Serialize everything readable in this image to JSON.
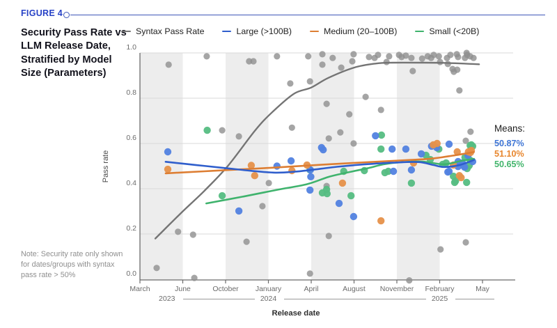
{
  "figure_label": "FIGURE 4",
  "title": "Security Pass Rate vs LLM Release Date, Stratified by Model Size (Parameters)",
  "note": "Note: Security rate only shown for dates/groups with syntax pass rate > 50%",
  "chart_data": {
    "type": "scatter",
    "title": "Security Pass Rate vs LLM Release Date, Stratified by Model Size (Parameters)",
    "xlabel": "Release date",
    "ylabel": "Pass rate",
    "ylim": [
      0.0,
      1.0
    ],
    "grid": true,
    "banded_background": true,
    "legend_position": "top",
    "y_ticks": [
      "0.0",
      "0.2",
      "0.4",
      "0.6",
      "0.8",
      "1.0"
    ],
    "x_ticks": [
      "March",
      "June",
      "October",
      "January",
      "April",
      "August",
      "November",
      "February",
      "May"
    ],
    "x_years": [
      {
        "label": "2023",
        "x": 0.63
      },
      {
        "label": "2024",
        "x": 3.0
      },
      {
        "label": "2025",
        "x": 7.0
      }
    ],
    "x_unit": "tick index (0 = March 2023 ... 8 = May 2025)",
    "annotations": {
      "label": "Means:",
      "means": [
        {
          "series": "Large (>100B)",
          "value": "50.87%",
          "color": "#3f76d6"
        },
        {
          "series": "Medium (20–100B)",
          "value": "51.10%",
          "color": "#e8862d"
        },
        {
          "series": "Small (<20B)",
          "value": "50.65%",
          "color": "#43b56c"
        }
      ]
    },
    "series": [
      {
        "name": "Syntax Pass Rate",
        "point_color": "#8e8e8e",
        "line_color": "#747474",
        "points": [
          [
            0.39,
            0.05
          ],
          [
            0.67,
            0.948
          ],
          [
            0.89,
            0.21
          ],
          [
            1.24,
            0.197
          ],
          [
            1.27,
            0.006
          ],
          [
            1.56,
            0.985
          ],
          [
            1.92,
            0.658
          ],
          [
            2.31,
            0.631
          ],
          [
            2.49,
            0.166
          ],
          [
            2.55,
            0.963
          ],
          [
            2.65,
            0.963
          ],
          [
            2.86,
            0.323
          ],
          [
            3.01,
            0.425
          ],
          [
            3.2,
            0.985
          ],
          [
            3.51,
            0.865
          ],
          [
            3.55,
            0.67
          ],
          [
            3.93,
            0.985
          ],
          [
            3.97,
            0.874
          ],
          [
            3.97,
            0.025
          ],
          [
            4.26,
            0.994
          ],
          [
            4.26,
            0.948
          ],
          [
            4.36,
            0.775
          ],
          [
            4.36,
            0.412
          ],
          [
            4.41,
            0.622
          ],
          [
            4.41,
            0.191
          ],
          [
            4.5,
            0.978
          ],
          [
            4.68,
            0.649
          ],
          [
            4.7,
            0.935
          ],
          [
            4.89,
            0.729
          ],
          [
            4.96,
            0.963
          ],
          [
            4.99,
            0.994
          ],
          [
            4.99,
            0.6
          ],
          [
            5.27,
            0.806
          ],
          [
            5.35,
            0.982
          ],
          [
            5.48,
            0.978
          ],
          [
            5.56,
            0.991
          ],
          [
            5.63,
            0.748
          ],
          [
            5.76,
            0.96
          ],
          [
            5.82,
            0.985
          ],
          [
            6.05,
            0.991
          ],
          [
            6.11,
            0.982
          ],
          [
            6.21,
            0.988
          ],
          [
            6.29,
            -0.005
          ],
          [
            6.34,
            0.978
          ],
          [
            6.37,
            0.92
          ],
          [
            6.59,
            0.975
          ],
          [
            6.72,
            0.985
          ],
          [
            6.8,
            0.978
          ],
          [
            6.86,
            0.991
          ],
          [
            6.98,
            0.985
          ],
          [
            7.01,
            0.96
          ],
          [
            7.02,
            0.132
          ],
          [
            7.17,
            0.978
          ],
          [
            7.19,
            0.951
          ],
          [
            7.25,
            0.991
          ],
          [
            7.3,
            0.929
          ],
          [
            7.33,
            0.917
          ],
          [
            7.4,
            0.994
          ],
          [
            7.41,
            0.926
          ],
          [
            7.43,
            0.982
          ],
          [
            7.46,
            0.834
          ],
          [
            7.59,
            0.978
          ],
          [
            7.61,
            0.612
          ],
          [
            7.61,
            0.163
          ],
          [
            7.63,
            1.0
          ],
          [
            7.64,
            0.991
          ],
          [
            7.71,
            0.985
          ],
          [
            7.72,
            0.652
          ],
          [
            7.79,
            0.978
          ]
        ],
        "trend": [
          [
            0.36,
            0.18
          ],
          [
            1.0,
            0.3
          ],
          [
            1.5,
            0.39
          ],
          [
            2.05,
            0.5
          ],
          [
            2.7,
            0.66
          ],
          [
            3.1,
            0.74
          ],
          [
            3.6,
            0.82
          ],
          [
            4.0,
            0.847
          ],
          [
            4.4,
            0.89
          ],
          [
            5.0,
            0.935
          ],
          [
            5.5,
            0.953
          ],
          [
            5.9,
            0.957
          ],
          [
            6.5,
            0.957
          ],
          [
            7.1,
            0.956
          ],
          [
            7.92,
            0.95
          ]
        ]
      },
      {
        "name": "Large (>100B)",
        "point_color": "#5282e0",
        "line_color": "#2f5ecc",
        "mean": "50.87%",
        "points": [
          [
            0.65,
            0.563
          ],
          [
            2.31,
            0.302
          ],
          [
            3.2,
            0.5
          ],
          [
            3.53,
            0.523
          ],
          [
            3.97,
            0.394
          ],
          [
            3.98,
            0.483
          ],
          [
            3.99,
            0.453
          ],
          [
            4.24,
            0.582
          ],
          [
            4.28,
            0.572
          ],
          [
            4.65,
            0.335
          ],
          [
            4.99,
            0.277
          ],
          [
            5.5,
            0.634
          ],
          [
            5.89,
            0.575
          ],
          [
            5.92,
            0.477
          ],
          [
            6.21,
            0.575
          ],
          [
            6.34,
            0.483
          ],
          [
            6.57,
            0.554
          ],
          [
            6.81,
            0.588
          ],
          [
            6.93,
            0.582
          ],
          [
            7.19,
            0.474
          ],
          [
            7.22,
            0.597
          ],
          [
            7.22,
            0.477
          ],
          [
            7.43,
            0.52
          ],
          [
            7.43,
            0.498
          ],
          [
            7.53,
            0.514
          ],
          [
            7.56,
            0.502
          ],
          [
            7.58,
            0.495
          ],
          [
            7.66,
            0.548
          ],
          [
            7.77,
            0.52
          ]
        ],
        "trend": [
          [
            0.6,
            0.519
          ],
          [
            1.3,
            0.505
          ],
          [
            2.0,
            0.491
          ],
          [
            2.6,
            0.479
          ],
          [
            3.16,
            0.471
          ],
          [
            3.6,
            0.475
          ],
          [
            4.0,
            0.483
          ],
          [
            4.6,
            0.497
          ],
          [
            5.2,
            0.507
          ],
          [
            5.9,
            0.515
          ],
          [
            6.5,
            0.518
          ],
          [
            6.85,
            0.505
          ],
          [
            7.1,
            0.496
          ],
          [
            7.45,
            0.504
          ],
          [
            7.8,
            0.527
          ]
        ]
      },
      {
        "name": "Medium (20–100B)",
        "point_color": "#e6914a",
        "line_color": "#dd7e33",
        "mean": "51.10%",
        "points": [
          [
            0.65,
            0.486
          ],
          [
            2.6,
            0.503
          ],
          [
            2.68,
            0.458
          ],
          [
            3.55,
            0.48
          ],
          [
            3.9,
            0.505
          ],
          [
            4.73,
            0.425
          ],
          [
            5.63,
            0.258
          ],
          [
            6.39,
            0.514
          ],
          [
            6.85,
            0.594
          ],
          [
            6.94,
            0.6
          ],
          [
            7.32,
            0.505
          ],
          [
            7.41,
            0.563
          ],
          [
            7.46,
            0.458
          ],
          [
            7.5,
            0.449
          ],
          [
            7.67,
            0.563
          ],
          [
            7.72,
            0.56
          ],
          [
            7.74,
            0.569
          ]
        ],
        "trend": [
          [
            0.6,
            0.468
          ],
          [
            1.5,
            0.477
          ],
          [
            2.4,
            0.486
          ],
          [
            3.1,
            0.493
          ],
          [
            3.9,
            0.502
          ],
          [
            4.7,
            0.511
          ],
          [
            5.5,
            0.519
          ],
          [
            6.2,
            0.526
          ],
          [
            6.8,
            0.533
          ],
          [
            7.3,
            0.546
          ],
          [
            7.8,
            0.562
          ]
        ]
      },
      {
        "name": "Small (<20B)",
        "point_color": "#55bd82",
        "line_color": "#3fb36d",
        "mean": "50.65%",
        "points": [
          [
            1.57,
            0.658
          ],
          [
            1.92,
            0.369
          ],
          [
            3.97,
            0.483
          ],
          [
            4.26,
            0.382
          ],
          [
            4.36,
            0.397
          ],
          [
            4.37,
            0.378
          ],
          [
            4.76,
            0.477
          ],
          [
            4.93,
            0.369
          ],
          [
            5.24,
            0.48
          ],
          [
            5.63,
            0.575
          ],
          [
            5.64,
            0.637
          ],
          [
            5.72,
            0.471
          ],
          [
            5.8,
            0.477
          ],
          [
            6.34,
            0.425
          ],
          [
            6.68,
            0.548
          ],
          [
            6.78,
            0.529
          ],
          [
            6.98,
            0.575
          ],
          [
            7.07,
            0.508
          ],
          [
            7.15,
            0.514
          ],
          [
            7.32,
            0.455
          ],
          [
            7.35,
            0.428
          ],
          [
            7.37,
            0.434
          ],
          [
            7.59,
            0.538
          ],
          [
            7.63,
            0.428
          ],
          [
            7.64,
            0.489
          ],
          [
            7.69,
            0.502
          ],
          [
            7.71,
            0.591
          ],
          [
            7.71,
            0.526
          ],
          [
            7.74,
            0.594
          ],
          [
            7.77,
            0.588
          ]
        ],
        "trend": [
          [
            1.55,
            0.335
          ],
          [
            2.4,
            0.365
          ],
          [
            3.2,
            0.395
          ],
          [
            3.9,
            0.42
          ],
          [
            4.4,
            0.452
          ],
          [
            4.8,
            0.47
          ],
          [
            5.3,
            0.49
          ],
          [
            5.7,
            0.508
          ],
          [
            6.1,
            0.517
          ],
          [
            6.6,
            0.52
          ],
          [
            7.1,
            0.508
          ],
          [
            7.5,
            0.523
          ],
          [
            7.8,
            0.532
          ]
        ]
      }
    ]
  }
}
